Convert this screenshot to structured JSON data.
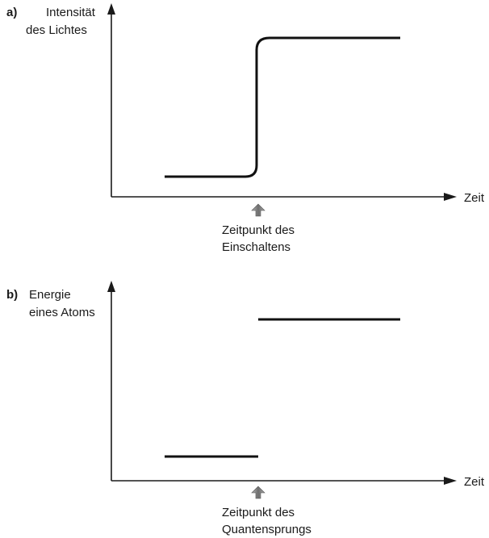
{
  "panel_a": {
    "tag": "a)",
    "y_label_line1": "Intensität",
    "y_label_line2": "des Lichtes",
    "x_label": "Zeit",
    "marker_line1": "Zeitpunkt des",
    "marker_line2": "Einschaltens"
  },
  "panel_b": {
    "tag": "b)",
    "y_label_line1": "Energie",
    "y_label_line2": "eines Atoms",
    "x_label": "Zeit",
    "marker_line1": "Zeitpunkt des",
    "marker_line2": "Quantensprungs"
  },
  "colors": {
    "line": "#111111",
    "marker_arrow": "#8c8c8c"
  },
  "icons": [
    "up-arrow-marker-icon"
  ]
}
